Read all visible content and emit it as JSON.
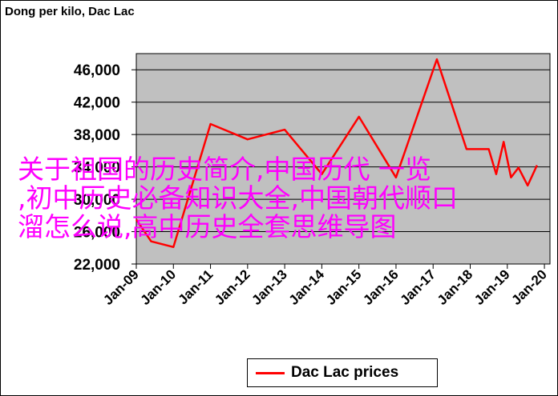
{
  "chart_data": {
    "type": "line",
    "title": "Dong per kilo, Dac Lac",
    "xlabel": "",
    "ylabel": "",
    "ylim": [
      22000,
      48000
    ],
    "y_ticks": [
      "22,000",
      "26,000",
      "30,000",
      "34,000",
      "38,000",
      "42,000",
      "46,000"
    ],
    "y_tick_values": [
      22000,
      26000,
      30000,
      34000,
      38000,
      42000,
      46000
    ],
    "x_ticks": [
      "Jan-09",
      "Jan-10",
      "Jan-11",
      "Jan-12",
      "Jan-13",
      "Jan-14",
      "Jan-15",
      "Jan-16",
      "Jan-17",
      "Jan-18",
      "Jan-19",
      "Jan-20"
    ],
    "xlim": [
      2009,
      2020.15
    ],
    "grid": "horizontal",
    "plot_background": "#c0c0c0",
    "legend_position": "bottom",
    "series": [
      {
        "name": "Dac Lac prices",
        "color": "#ff0000",
        "points": [
          [
            2009.0,
            27500
          ],
          [
            2009.4,
            24800
          ],
          [
            2010.0,
            24100
          ],
          [
            2011.0,
            39300
          ],
          [
            2012.0,
            37400
          ],
          [
            2013.0,
            38600
          ],
          [
            2014.0,
            33100
          ],
          [
            2015.0,
            40200
          ],
          [
            2016.0,
            32700
          ],
          [
            2017.1,
            47300
          ],
          [
            2017.9,
            36200
          ],
          [
            2018.5,
            36200
          ],
          [
            2018.7,
            33100
          ],
          [
            2018.9,
            37100
          ],
          [
            2019.1,
            32700
          ],
          [
            2019.3,
            33900
          ],
          [
            2019.55,
            31700
          ],
          [
            2019.8,
            34200
          ]
        ]
      }
    ]
  },
  "overlay_text": {
    "line1": "关于祖国的历史简介,中国历代 一览",
    "line2": ",初中历史必备知识大全,中国朝代顺口",
    "line3": "溜怎么说,高中历史全套思维导图"
  }
}
